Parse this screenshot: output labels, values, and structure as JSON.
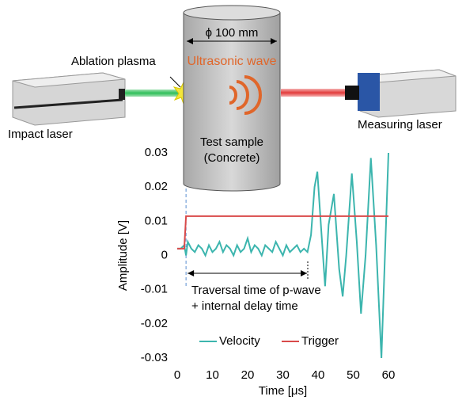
{
  "diagram": {
    "cylinder_width": "ϕ 100 mm",
    "wave": "Ultrasonic wave",
    "sample": [
      "Test sample",
      "(Concrete)"
    ],
    "plasma": "Ablation plasma",
    "impact": "Impact laser",
    "measuring": "Measuring laser"
  },
  "chart_data": {
    "type": "line",
    "xlabel": "Time [μs]",
    "ylabel": "Amplitude [V]",
    "xlim": [
      0,
      60
    ],
    "xticks": [
      0,
      10,
      20,
      30,
      40,
      50,
      60
    ],
    "ylim": [
      -0.03,
      0.03
    ],
    "yticks": [
      -0.03,
      -0.02,
      -0.01,
      0,
      0.01,
      0.02,
      0.03
    ],
    "legend": "bottom",
    "annotation": [
      "Traversal time of p-wave",
      "+ internal delay time"
    ],
    "series": [
      {
        "name": "Velocity",
        "color": "#3cb5ae",
        "x": [
          0,
          1,
          2,
          2.5,
          3,
          4,
          5,
          6,
          7,
          8,
          9,
          10,
          11,
          12,
          13,
          14,
          15,
          16,
          17,
          18,
          19,
          20,
          21,
          22,
          23,
          24,
          25,
          26,
          27,
          28,
          29,
          30,
          31,
          32,
          33,
          34,
          35,
          36,
          37,
          38,
          39,
          39.8,
          41,
          42,
          43,
          44.5,
          46,
          47,
          48,
          49.6,
          51,
          52.2,
          53.5,
          55,
          56.5,
          58,
          59,
          60
        ],
        "values": [
          0.002,
          0.002,
          0.003,
          0.0,
          0.004,
          0.002,
          0.001,
          0.003,
          0.002,
          0.0,
          0.003,
          0.001,
          0.002,
          0.004,
          0.001,
          0.003,
          0.002,
          0.0,
          0.003,
          0.001,
          0.002,
          0.005,
          0.001,
          0.003,
          0.002,
          0.0,
          0.003,
          0.002,
          0.001,
          0.004,
          0.002,
          0.0,
          0.003,
          0.001,
          0.002,
          0.003,
          0.001,
          0.002,
          0.001,
          0.006,
          0.02,
          0.0245,
          0.006,
          -0.009,
          0.009,
          0.018,
          -0.004,
          -0.012,
          0.0,
          0.024,
          0.004,
          -0.017,
          0.0,
          0.0285,
          0.003,
          -0.03,
          0.0,
          0.03
        ]
      },
      {
        "name": "Trigger",
        "color": "#d94a4a",
        "x": [
          0,
          2,
          2.5,
          60
        ],
        "values": [
          0.002,
          0.002,
          0.0115,
          0.0115
        ]
      }
    ]
  }
}
